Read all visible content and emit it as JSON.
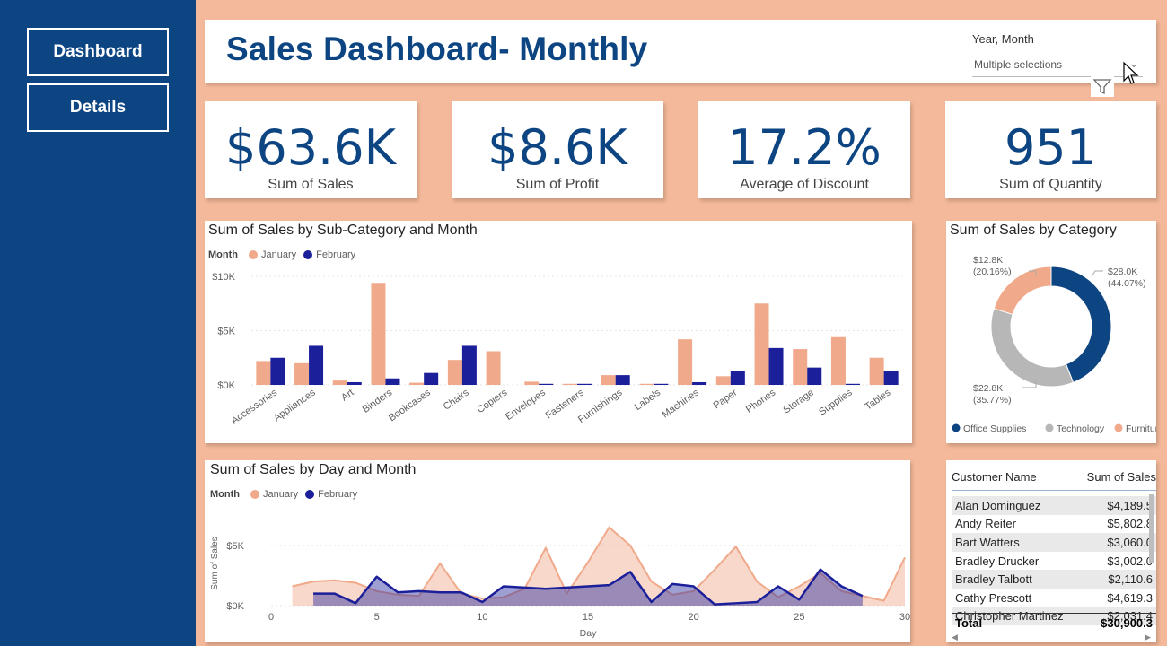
{
  "nav": {
    "dashboard_label": "Dashboard",
    "details_label": "Details"
  },
  "header": {
    "title": "Sales Dashboard- Monthly",
    "slicer_label": "Year, Month",
    "slicer_value": "Multiple selections"
  },
  "kpis": [
    {
      "value": "$63.6K",
      "label": "Sum of Sales"
    },
    {
      "value": "$8.6K",
      "label": "Sum of Profit"
    },
    {
      "value": "17.2%",
      "label": "Average of Discount"
    },
    {
      "value": "951",
      "label": "Sum of Quantity"
    }
  ],
  "legend": {
    "title": "Month",
    "jan": "January",
    "feb": "February"
  },
  "colors": {
    "jan": "#f0a98a",
    "feb": "#1b1f9a",
    "office": "#0d4583",
    "tech": "#b7b7b7",
    "furn": "#f0a98a",
    "nav": "#0d4583",
    "canvas": "#f4b99a"
  },
  "chart_data": [
    {
      "type": "bar",
      "title": "Sum of Sales by Sub-Category and Month",
      "categories": [
        "Accessories",
        "Appliances",
        "Art",
        "Binders",
        "Bookcases",
        "Chairs",
        "Copiers",
        "Envelopes",
        "Fasteners",
        "Furnishings",
        "Labels",
        "Machines",
        "Paper",
        "Phones",
        "Storage",
        "Supplies",
        "Tables"
      ],
      "series": [
        {
          "name": "January",
          "values": [
            2200,
            2000,
            400,
            9400,
            200,
            2300,
            3100,
            300,
            100,
            900,
            100,
            4200,
            800,
            7500,
            3300,
            4400,
            2500
          ]
        },
        {
          "name": "February",
          "values": [
            2500,
            3600,
            250,
            600,
            1100,
            3600,
            0,
            100,
            100,
            900,
            100,
            250,
            1300,
            3400,
            1600,
            100,
            1300
          ]
        }
      ],
      "yticks": [
        "$0K",
        "$5K",
        "$10K"
      ],
      "ylim": [
        0,
        10000
      ],
      "legend_title": "Month"
    },
    {
      "type": "pie",
      "title": "Sum of Sales by Category",
      "labels": [
        "Office Supplies",
        "Technology",
        "Furniture"
      ],
      "values": [
        28.0,
        22.8,
        12.8
      ],
      "value_labels": [
        "$28.0K",
        "$22.8K",
        "$12.8K"
      ],
      "percent_labels": [
        "(44.07%)",
        "(35.77%)",
        "(20.16%)"
      ]
    },
    {
      "type": "area",
      "title": "Sum of Sales by Day and Month",
      "xlabel": "Day",
      "ylabel": "Sum of Sales",
      "xticks": [
        0,
        5,
        10,
        15,
        20,
        25,
        30
      ],
      "yticks": [
        "$0K",
        "$5K"
      ],
      "xlim": [
        0,
        30
      ],
      "ylim": [
        0,
        7000
      ],
      "series": [
        {
          "name": "January",
          "points": [
            [
              1,
              1600
            ],
            [
              2,
              2000
            ],
            [
              3,
              2100
            ],
            [
              4,
              1900
            ],
            [
              5,
              1200
            ],
            [
              6,
              900
            ],
            [
              7,
              800
            ],
            [
              8,
              3500
            ],
            [
              9,
              1000
            ],
            [
              10,
              600
            ],
            [
              11,
              700
            ],
            [
              12,
              1400
            ],
            [
              13,
              4800
            ],
            [
              14,
              1000
            ],
            [
              15,
              3600
            ],
            [
              16,
              6500
            ],
            [
              17,
              5000
            ],
            [
              18,
              2000
            ],
            [
              19,
              900
            ],
            [
              20,
              1200
            ],
            [
              21,
              3000
            ],
            [
              22,
              4900
            ],
            [
              23,
              2000
            ],
            [
              24,
              700
            ],
            [
              25,
              1600
            ],
            [
              26,
              2700
            ],
            [
              27,
              1200
            ],
            [
              28,
              800
            ],
            [
              29,
              400
            ],
            [
              30,
              4000
            ]
          ]
        },
        {
          "name": "February",
          "points": [
            [
              2,
              1000
            ],
            [
              3,
              1000
            ],
            [
              4,
              200
            ],
            [
              5,
              2400
            ],
            [
              6,
              1100
            ],
            [
              7,
              1200
            ],
            [
              8,
              1100
            ],
            [
              9,
              1100
            ],
            [
              10,
              300
            ],
            [
              11,
              1600
            ],
            [
              12,
              1500
            ],
            [
              13,
              1400
            ],
            [
              14,
              1500
            ],
            [
              15,
              1600
            ],
            [
              16,
              1700
            ],
            [
              17,
              2800
            ],
            [
              18,
              300
            ],
            [
              19,
              1800
            ],
            [
              20,
              1600
            ],
            [
              21,
              100
            ],
            [
              22,
              200
            ],
            [
              23,
              300
            ],
            [
              24,
              1600
            ],
            [
              25,
              500
            ],
            [
              26,
              3000
            ],
            [
              27,
              1600
            ],
            [
              28,
              800
            ]
          ]
        }
      ]
    }
  ],
  "table": {
    "col_name": "Customer Name",
    "col_sales": "Sum of Sales",
    "rows": [
      {
        "name": "Alan Dominguez",
        "sales": "$4,189.5"
      },
      {
        "name": "Andy Reiter",
        "sales": "$5,802.8"
      },
      {
        "name": "Bart Watters",
        "sales": "$3,060.0"
      },
      {
        "name": "Bradley Drucker",
        "sales": "$3,002.0"
      },
      {
        "name": "Bradley Talbott",
        "sales": "$2,110.6"
      },
      {
        "name": "Cathy Prescott",
        "sales": "$4,619.3"
      },
      {
        "name": "Christopher Martinez",
        "sales": "$2,031.4"
      }
    ],
    "total_label": "Total",
    "total_value": "$30,900.3"
  }
}
